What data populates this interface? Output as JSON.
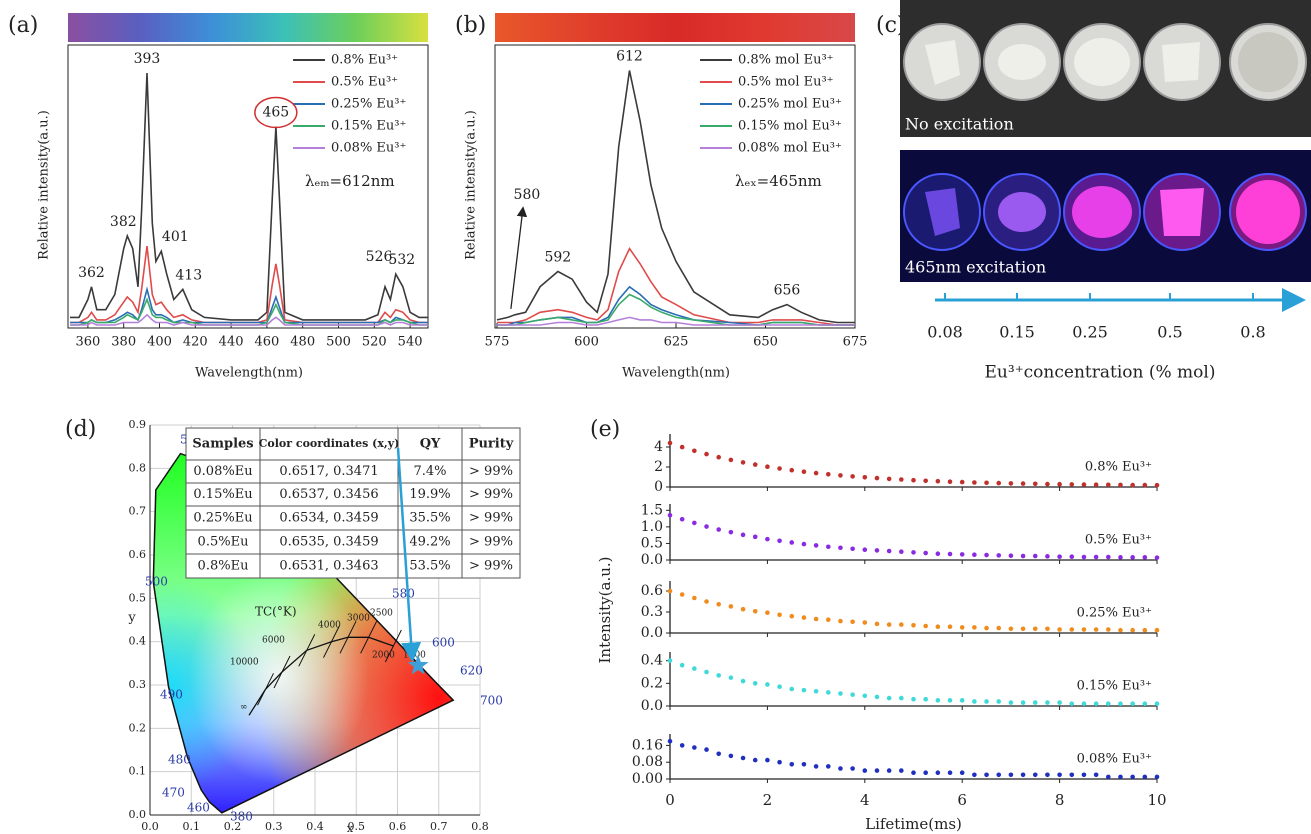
{
  "chart_data": [
    {
      "type": "line",
      "panel_label": "(a)",
      "xlabel": "Wavelength(nm)",
      "ylabel": "Relative intensity(a.u.)",
      "xlim": [
        350,
        550
      ],
      "ylim": [
        0,
        1.1
      ],
      "xticks": [
        360,
        380,
        400,
        420,
        440,
        460,
        480,
        500,
        520,
        540
      ],
      "colorbar": [
        "#8a4fa0",
        "#5a5fc0",
        "#3d8fd8",
        "#3cc0b8",
        "#6ccf5a",
        "#d8e040"
      ],
      "inset_text": "λₑₘ=612nm",
      "x": [
        350,
        355,
        360,
        362,
        365,
        370,
        375,
        380,
        382,
        385,
        388,
        390,
        393,
        396,
        398,
        401,
        404,
        408,
        413,
        418,
        425,
        440,
        455,
        460,
        463,
        465,
        467,
        470,
        480,
        500,
        515,
        522,
        526,
        529,
        532,
        536,
        540,
        545,
        550
      ],
      "series": [
        {
          "name": "0.8% Eu³⁺",
          "color": "#3a3a3a",
          "values": [
            0.03,
            0.03,
            0.1,
            0.15,
            0.06,
            0.06,
            0.12,
            0.3,
            0.35,
            0.3,
            0.15,
            0.45,
            0.99,
            0.4,
            0.25,
            0.29,
            0.2,
            0.1,
            0.14,
            0.06,
            0.03,
            0.02,
            0.02,
            0.05,
            0.5,
            0.78,
            0.5,
            0.05,
            0.02,
            0.02,
            0.02,
            0.04,
            0.15,
            0.1,
            0.2,
            0.15,
            0.05,
            0.03,
            0.03
          ]
        },
        {
          "name": "0.5% Eu³⁺",
          "color": "#e04b4b",
          "values": [
            0.01,
            0.01,
            0.03,
            0.05,
            0.02,
            0.02,
            0.04,
            0.09,
            0.11,
            0.09,
            0.05,
            0.14,
            0.31,
            0.12,
            0.08,
            0.09,
            0.06,
            0.03,
            0.04,
            0.02,
            0.01,
            0.01,
            0.01,
            0.02,
            0.16,
            0.24,
            0.16,
            0.02,
            0.01,
            0.01,
            0.01,
            0.01,
            0.05,
            0.03,
            0.06,
            0.05,
            0.02,
            0.01,
            0.01
          ]
        },
        {
          "name": "0.25% Eu³⁺",
          "color": "#2a6db5",
          "values": [
            0.01,
            0.01,
            0.01,
            0.02,
            0.01,
            0.01,
            0.02,
            0.04,
            0.05,
            0.04,
            0.02,
            0.06,
            0.14,
            0.06,
            0.04,
            0.04,
            0.03,
            0.01,
            0.02,
            0.01,
            0.01,
            0.01,
            0.01,
            0.01,
            0.07,
            0.11,
            0.07,
            0.01,
            0.01,
            0.01,
            0.01,
            0.01,
            0.02,
            0.01,
            0.03,
            0.02,
            0.01,
            0.01,
            0.01
          ]
        },
        {
          "name": "0.15% Eu³⁺",
          "color": "#3aaa6a",
          "values": [
            0,
            0,
            0.01,
            0.02,
            0.01,
            0.01,
            0.01,
            0.03,
            0.04,
            0.03,
            0.02,
            0.05,
            0.1,
            0.04,
            0.03,
            0.03,
            0.02,
            0.01,
            0.01,
            0.01,
            0,
            0,
            0,
            0.01,
            0.05,
            0.08,
            0.05,
            0.01,
            0,
            0,
            0,
            0,
            0.02,
            0.01,
            0.02,
            0.02,
            0.01,
            0,
            0
          ]
        },
        {
          "name": "0.08% Eu³⁺",
          "color": "#b580d8",
          "values": [
            0,
            0,
            0,
            0.01,
            0,
            0,
            0,
            0.01,
            0.01,
            0.01,
            0.01,
            0.02,
            0.04,
            0.02,
            0.01,
            0.01,
            0.01,
            0,
            0.01,
            0,
            0,
            0,
            0,
            0,
            0.02,
            0.03,
            0.02,
            0,
            0,
            0,
            0,
            0,
            0.01,
            0,
            0.01,
            0.01,
            0,
            0,
            0
          ]
        }
      ],
      "annotations": [
        {
          "x": 362,
          "label": "362"
        },
        {
          "x": 382,
          "label": "382"
        },
        {
          "x": 393,
          "label": "393"
        },
        {
          "x": 401,
          "label": "401"
        },
        {
          "x": 413,
          "label": "413"
        },
        {
          "x": 465,
          "label": "465"
        },
        {
          "x": 526,
          "label": "526"
        },
        {
          "x": 532,
          "label": "532"
        }
      ]
    },
    {
      "type": "line",
      "panel_label": "(b)",
      "xlabel": "Wavelength(nm)",
      "ylabel": "Relative intensity(a.u.)",
      "xlim": [
        575,
        675
      ],
      "ylim": [
        0,
        1.1
      ],
      "xticks": [
        575,
        600,
        625,
        650,
        675
      ],
      "colorbar": [
        "#e8582a",
        "#e0402c",
        "#d82a28",
        "#e03a30",
        "#d84848"
      ],
      "inset_text": "λₑₓ=465nm",
      "x": [
        575,
        578,
        580,
        583,
        587,
        592,
        596,
        600,
        603,
        606,
        609,
        612,
        615,
        618,
        621,
        625,
        630,
        640,
        648,
        652,
        656,
        660,
        665,
        670,
        675
      ],
      "series": [
        {
          "name": "0.8%  mol Eu³⁺",
          "color": "#3a3a3a",
          "values": [
            0.02,
            0.03,
            0.04,
            0.05,
            0.15,
            0.21,
            0.18,
            0.09,
            0.05,
            0.2,
            0.7,
            1.0,
            0.8,
            0.55,
            0.38,
            0.25,
            0.13,
            0.04,
            0.03,
            0.06,
            0.08,
            0.05,
            0.02,
            0.01,
            0.01
          ]
        },
        {
          "name": "0.5%  mol Eu³⁺",
          "color": "#e04b4b",
          "values": [
            0.01,
            0.01,
            0.01,
            0.02,
            0.05,
            0.06,
            0.05,
            0.03,
            0.02,
            0.06,
            0.21,
            0.3,
            0.24,
            0.17,
            0.11,
            0.08,
            0.04,
            0.01,
            0.01,
            0.02,
            0.02,
            0.02,
            0.01,
            0,
            0
          ]
        },
        {
          "name": "0.25% mol Eu³⁺",
          "color": "#2a6db5",
          "values": [
            0,
            0,
            0.01,
            0.01,
            0.02,
            0.03,
            0.03,
            0.01,
            0.01,
            0.03,
            0.1,
            0.15,
            0.12,
            0.08,
            0.06,
            0.04,
            0.02,
            0.01,
            0,
            0.01,
            0.01,
            0.01,
            0,
            0,
            0
          ]
        },
        {
          "name": "0.15% mol Eu³⁺",
          "color": "#3aaa6a",
          "values": [
            0,
            0,
            0,
            0.01,
            0.02,
            0.03,
            0.02,
            0.01,
            0.01,
            0.02,
            0.08,
            0.12,
            0.1,
            0.07,
            0.05,
            0.03,
            0.02,
            0,
            0,
            0.01,
            0.01,
            0.01,
            0,
            0,
            0
          ]
        },
        {
          "name": "0.08% mol Eu³⁺",
          "color": "#b580d8",
          "values": [
            0,
            0,
            0,
            0,
            0,
            0.01,
            0.01,
            0,
            0,
            0.01,
            0.02,
            0.03,
            0.02,
            0.02,
            0.01,
            0.01,
            0,
            0,
            0,
            0,
            0,
            0,
            0,
            0,
            0
          ]
        }
      ],
      "annotations": [
        {
          "x": 612,
          "label": "612"
        },
        {
          "x": 592,
          "label": "592"
        },
        {
          "x": 656,
          "label": "656"
        },
        {
          "x": 580,
          "label": "580"
        }
      ]
    },
    {
      "type": "cie",
      "panel_label": "(d)",
      "xlabel": "x",
      "ylabel": "y",
      "xlim": [
        0,
        0.8
      ],
      "ylim": [
        0,
        0.9
      ],
      "xticks": [
        {
          "value": 0,
          "label": "0.0"
        },
        0.1,
        0.2,
        0.3,
        0.4,
        0.5,
        0.6,
        0.7,
        0.8
      ],
      "yticks": [
        {
          "value": 0,
          "label": "0.0"
        },
        0.1,
        0.2,
        0.3,
        0.4,
        0.5,
        0.6,
        0.7,
        0.8,
        0.9
      ],
      "grid": true,
      "locus_labels": [
        "5",
        "500",
        "490",
        "480",
        "470",
        "460",
        "380",
        "580",
        "600",
        "620",
        "700"
      ],
      "planck_labels": [
        "TC(°K)",
        "10000",
        "6000",
        "4000",
        "3000",
        "2500",
        "2000",
        "1500",
        "∞"
      ],
      "point": {
        "x": 0.65,
        "y": 0.345
      },
      "point_color": "#3ea0d8",
      "table": {
        "header": [
          "Samples",
          "Color coordinates (x,y)",
          "QY",
          "Purity"
        ],
        "rows": [
          [
            "0.08%Eu",
            "0.6517, 0.3471",
            "7.4%",
            "> 99%"
          ],
          [
            "0.15%Eu",
            "0.6537, 0.3456",
            "19.9%",
            "> 99%"
          ],
          [
            "0.25%Eu",
            "0.6534, 0.3459",
            "35.5%",
            "> 99%"
          ],
          [
            "0.5%Eu",
            "0.6535, 0.3459",
            "49.2%",
            "> 99%"
          ],
          [
            "0.8%Eu",
            "0.6531, 0.3463",
            "53.5%",
            "> 99%"
          ]
        ]
      }
    },
    {
      "type": "scatter_stack",
      "panel_label": "(e)",
      "xlabel": "Lifetime(ms)",
      "ylabel": "Intensity(a.u.)",
      "xlim": [
        0,
        10
      ],
      "xticks": [
        0,
        2,
        4,
        6,
        8,
        10
      ],
      "x": [
        0,
        0.25,
        0.5,
        0.75,
        1,
        1.25,
        1.5,
        1.75,
        2,
        2.25,
        2.5,
        2.75,
        3,
        3.25,
        3.5,
        3.75,
        4,
        4.25,
        4.5,
        4.75,
        5,
        5.25,
        5.5,
        5.75,
        6,
        6.25,
        6.5,
        6.75,
        7,
        7.25,
        7.5,
        7.75,
        8,
        8.25,
        8.5,
        8.75,
        9,
        9.25,
        9.5,
        9.75,
        10
      ],
      "series": [
        {
          "name": "0.8% Eu³⁺",
          "color": "#c0302c",
          "ylim": [
            0,
            5
          ],
          "yticks": [
            0,
            2,
            4
          ],
          "values": [
            4.4,
            3.99,
            3.62,
            3.29,
            2.98,
            2.71,
            2.46,
            2.24,
            2.03,
            1.85,
            1.68,
            1.53,
            1.39,
            1.27,
            1.16,
            1.06,
            0.97,
            0.89,
            0.81,
            0.75,
            0.68,
            0.62,
            0.58,
            0.53,
            0.49,
            0.45,
            0.42,
            0.39,
            0.36,
            0.34,
            0.32,
            0.29,
            0.28,
            0.26,
            0.24,
            0.23,
            0.22,
            0.21,
            0.19,
            0.19,
            0.18
          ]
        },
        {
          "name": "0.5% Eu³⁺",
          "color": "#8a2be2",
          "ylim": [
            0,
            1.6
          ],
          "yticks": [
            {
              "value": 0,
              "label": "0.0"
            },
            0.5,
            {
              "value": 1,
              "label": "1.0"
            },
            1.5
          ],
          "values": [
            1.35,
            1.23,
            1.12,
            1.01,
            0.92,
            0.84,
            0.76,
            0.7,
            0.63,
            0.58,
            0.53,
            0.48,
            0.44,
            0.4,
            0.37,
            0.34,
            0.31,
            0.29,
            0.27,
            0.25,
            0.23,
            0.21,
            0.19,
            0.18,
            0.17,
            0.16,
            0.15,
            0.14,
            0.13,
            0.12,
            0.12,
            0.11,
            0.1,
            0.1,
            0.09,
            0.09,
            0.09,
            0.08,
            0.08,
            0.08,
            0.07
          ]
        },
        {
          "name": "0.25% Eu³⁺",
          "color": "#f08c1e",
          "ylim": [
            0,
            0.7
          ],
          "yticks": [
            {
              "value": 0,
              "label": "0.0"
            },
            0.3,
            0.6
          ],
          "values": [
            0.6,
            0.55,
            0.5,
            0.45,
            0.41,
            0.38,
            0.34,
            0.31,
            0.29,
            0.26,
            0.24,
            0.22,
            0.2,
            0.19,
            0.17,
            0.16,
            0.15,
            0.13,
            0.12,
            0.12,
            0.11,
            0.1,
            0.09,
            0.09,
            0.08,
            0.08,
            0.07,
            0.07,
            0.06,
            0.06,
            0.06,
            0.06,
            0.05,
            0.05,
            0.05,
            0.05,
            0.05,
            0.04,
            0.04,
            0.04,
            0.04
          ]
        },
        {
          "name": "0.15% Eu³⁺",
          "color": "#3fd9d9",
          "ylim": [
            0,
            0.45
          ],
          "yticks": [
            {
              "value": 0,
              "label": "0.0"
            },
            0.2,
            0.4
          ],
          "values": [
            0.4,
            0.36,
            0.33,
            0.3,
            0.27,
            0.25,
            0.22,
            0.2,
            0.19,
            0.17,
            0.15,
            0.14,
            0.13,
            0.12,
            0.11,
            0.1,
            0.09,
            0.08,
            0.07,
            0.07,
            0.06,
            0.06,
            0.05,
            0.05,
            0.05,
            0.04,
            0.04,
            0.04,
            0.03,
            0.03,
            0.03,
            0.03,
            0.03,
            0.02,
            0.02,
            0.02,
            0.02,
            0.02,
            0.02,
            0.02,
            0.02
          ]
        },
        {
          "name": "0.08% Eu³⁺",
          "color": "#1f2fbf",
          "ylim": [
            0,
            0.2
          ],
          "yticks": [
            {
              "value": 0,
              "label": "0.00"
            },
            {
              "value": 0.08,
              "label": "0.08"
            },
            {
              "value": 0.16,
              "label": "0.16"
            }
          ],
          "values": [
            0.18,
            0.16,
            0.15,
            0.14,
            0.12,
            0.11,
            0.1,
            0.09,
            0.09,
            0.08,
            0.07,
            0.07,
            0.06,
            0.06,
            0.05,
            0.05,
            0.04,
            0.04,
            0.04,
            0.04,
            0.03,
            0.03,
            0.03,
            0.03,
            0.03,
            0.02,
            0.02,
            0.02,
            0.02,
            0.02,
            0.02,
            0.02,
            0.02,
            0.02,
            0.02,
            0.02,
            0.01,
            0.01,
            0.01,
            0.01,
            0.01
          ]
        }
      ]
    }
  ],
  "photo_panel": {
    "label": "(c)",
    "top_caption": "No excitation",
    "bottom_caption": "465nm excitation",
    "scale_ticks": [
      "0.08",
      "0.15",
      "0.25",
      "0.5",
      "0.8"
    ],
    "scale_label": "Eu³⁺concentration (% mol)"
  }
}
